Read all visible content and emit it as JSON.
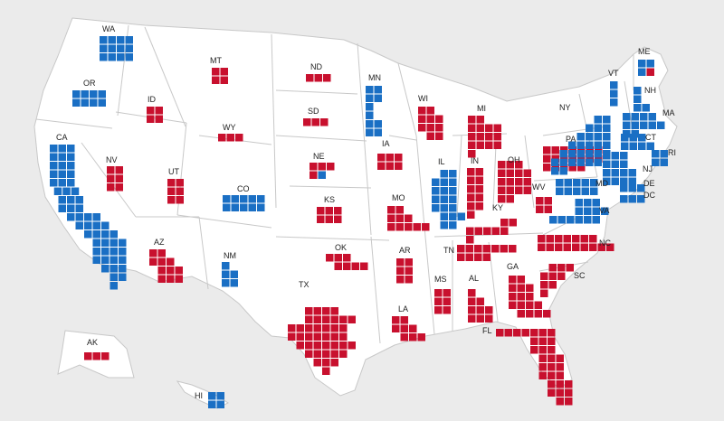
{
  "colors": {
    "R": "#c8102e",
    "D": "#1a6fc4",
    "background": "#ebebeb",
    "land": "#ffffff",
    "borders": "#c8c8c8"
  },
  "states": [
    {
      "abbr": "WA",
      "votes": 12,
      "winner": "D"
    },
    {
      "abbr": "OR",
      "votes": 8,
      "winner": "D"
    },
    {
      "abbr": "CA",
      "votes": 54,
      "winner": "D"
    },
    {
      "abbr": "NV",
      "votes": 6,
      "winner": "R"
    },
    {
      "abbr": "ID",
      "votes": 4,
      "winner": "R"
    },
    {
      "abbr": "MT",
      "votes": 4,
      "winner": "R"
    },
    {
      "abbr": "WY",
      "votes": 3,
      "winner": "R"
    },
    {
      "abbr": "UT",
      "votes": 6,
      "winner": "R"
    },
    {
      "abbr": "AZ",
      "votes": 11,
      "winner": "R"
    },
    {
      "abbr": "CO",
      "votes": 10,
      "winner": "D"
    },
    {
      "abbr": "NM",
      "votes": 5,
      "winner": "D"
    },
    {
      "abbr": "ND",
      "votes": 3,
      "winner": "R"
    },
    {
      "abbr": "SD",
      "votes": 3,
      "winner": "R"
    },
    {
      "abbr": "NE",
      "votes": 5,
      "winner": "R",
      "split": {
        "R": 4,
        "D": 1
      }
    },
    {
      "abbr": "KS",
      "votes": 6,
      "winner": "R"
    },
    {
      "abbr": "OK",
      "votes": 7,
      "winner": "R"
    },
    {
      "abbr": "TX",
      "votes": 40,
      "winner": "R"
    },
    {
      "abbr": "MN",
      "votes": 10,
      "winner": "D"
    },
    {
      "abbr": "IA",
      "votes": 6,
      "winner": "R"
    },
    {
      "abbr": "MO",
      "votes": 10,
      "winner": "R"
    },
    {
      "abbr": "AR",
      "votes": 6,
      "winner": "R"
    },
    {
      "abbr": "LA",
      "votes": 8,
      "winner": "R"
    },
    {
      "abbr": "WI",
      "votes": 10,
      "winner": "R"
    },
    {
      "abbr": "IL",
      "votes": 19,
      "winner": "D"
    },
    {
      "abbr": "MI",
      "votes": 15,
      "winner": "R"
    },
    {
      "abbr": "IN",
      "votes": 11,
      "winner": "R"
    },
    {
      "abbr": "OH",
      "votes": 17,
      "winner": "R"
    },
    {
      "abbr": "KY",
      "votes": 8,
      "winner": "R"
    },
    {
      "abbr": "TN",
      "votes": 11,
      "winner": "R"
    },
    {
      "abbr": "MS",
      "votes": 6,
      "winner": "R"
    },
    {
      "abbr": "AL",
      "votes": 9,
      "winner": "R"
    },
    {
      "abbr": "GA",
      "votes": 16,
      "winner": "R"
    },
    {
      "abbr": "FL",
      "votes": 30,
      "winner": "R"
    },
    {
      "abbr": "SC",
      "votes": 9,
      "winner": "R"
    },
    {
      "abbr": "NC",
      "votes": 16,
      "winner": "R"
    },
    {
      "abbr": "VA",
      "votes": 13,
      "winner": "D"
    },
    {
      "abbr": "WV",
      "votes": 4,
      "winner": "R"
    },
    {
      "abbr": "PA",
      "votes": 19,
      "winner": "R"
    },
    {
      "abbr": "NY",
      "votes": 28,
      "winner": "D"
    },
    {
      "abbr": "VT",
      "votes": 3,
      "winner": "D"
    },
    {
      "abbr": "NH",
      "votes": 4,
      "winner": "D"
    },
    {
      "abbr": "ME",
      "votes": 4,
      "winner": "D",
      "split": {
        "D": 3,
        "R": 1
      }
    },
    {
      "abbr": "MA",
      "votes": 11,
      "winner": "D"
    },
    {
      "abbr": "CT",
      "votes": 7,
      "winner": "D"
    },
    {
      "abbr": "RI",
      "votes": 4,
      "winner": "D"
    },
    {
      "abbr": "NJ",
      "votes": 14,
      "winner": "D"
    },
    {
      "abbr": "DE",
      "votes": 3,
      "winner": "D"
    },
    {
      "abbr": "MD",
      "votes": 10,
      "winner": "D"
    },
    {
      "abbr": "DC",
      "votes": 3,
      "winner": "D"
    },
    {
      "abbr": "AK",
      "votes": 3,
      "winner": "R"
    },
    {
      "abbr": "HI",
      "votes": 4,
      "winner": "D"
    }
  ]
}
